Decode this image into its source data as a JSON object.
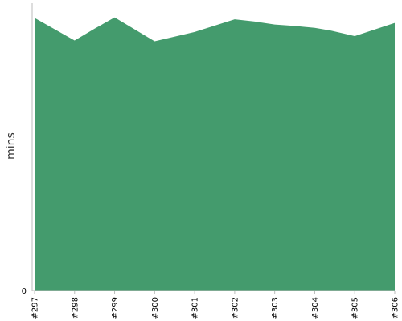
{
  "chart_data": {
    "type": "area",
    "ylabel": "mins",
    "xlabel": "",
    "title": "",
    "x": [
      "#297",
      "#298",
      "#299",
      "#300",
      "#301",
      "#302",
      "#303",
      "#304",
      "#305",
      "#306"
    ],
    "x_positions": [
      297,
      298,
      299,
      300,
      301,
      302,
      303,
      304,
      305,
      306
    ],
    "series": [
      {
        "name": "",
        "points": [
          [
            297.0,
            99.2
          ],
          [
            298.0,
            91.0
          ],
          [
            298.5,
            95.3
          ],
          [
            299.0,
            99.4
          ],
          [
            300.0,
            90.7
          ],
          [
            301.0,
            94.1
          ],
          [
            302.0,
            98.7
          ],
          [
            302.5,
            97.9
          ],
          [
            303.0,
            96.8
          ],
          [
            303.5,
            96.3
          ],
          [
            304.0,
            95.6
          ],
          [
            304.4,
            94.6
          ],
          [
            305.0,
            92.6
          ],
          [
            306.0,
            97.4
          ]
        ]
      }
    ],
    "ylim": [
      0,
      104
    ],
    "y_ticks": [
      0
    ],
    "y_tick_labels": [
      "0"
    ],
    "grid": false,
    "legend": "none",
    "fill_color": "#449b6d"
  }
}
